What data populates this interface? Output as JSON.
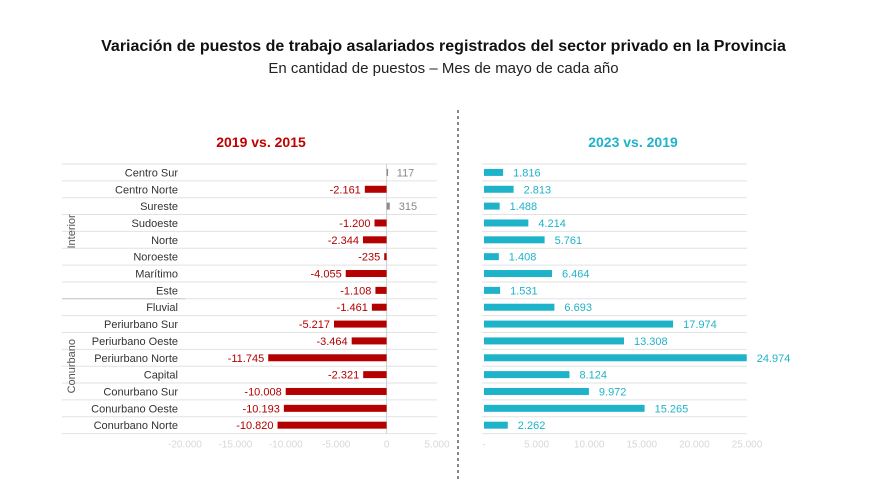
{
  "title": "Variación de puestos de trabajo asalariados registrados del sector privado en la Provincia",
  "subtitle": "En cantidad de puestos – Mes de mayo de cada año",
  "colors": {
    "negative": "#b30000",
    "positive_small": "#8c8c8c",
    "right": "#1fb3c9",
    "left_title": "#c00000",
    "right_title": "#1fb3c9"
  },
  "chart_data": [
    {
      "type": "bar",
      "orientation": "horizontal",
      "title": "2019 vs. 2015",
      "categories": [
        "Centro Sur",
        "Centro Norte",
        "Sureste",
        "Sudoeste",
        "Norte",
        "Noroeste",
        "Marítimo",
        "Este",
        "Fluvial",
        "Periurbano Sur",
        "Periurbano Oeste",
        "Periurbano Norte",
        "Capital",
        "Conurbano Sur",
        "Conurbano Oeste",
        "Conurbano Norte"
      ],
      "groups": [
        {
          "name": "Interior",
          "from": 0,
          "to": 7
        },
        {
          "name": "Conurbano",
          "from": 8,
          "to": 15
        }
      ],
      "values": [
        117,
        -2161,
        315,
        -1200,
        -2344,
        -235,
        -4055,
        -1108,
        -1461,
        -5217,
        -3464,
        -11745,
        -2321,
        -10008,
        -10193,
        -10820
      ],
      "labels": [
        "117",
        "-2.161",
        "315",
        "-1.200",
        "-2.344",
        "-235",
        "-4.055",
        "-1.108",
        "-1.461",
        "-5.217",
        "-3.464",
        "-11.745",
        "-2.321",
        "-10.008",
        "-10.193",
        "-10.820"
      ],
      "xlim": [
        -20000,
        5000
      ],
      "xticks": [
        -20000,
        -15000,
        -10000,
        -5000,
        0,
        5000
      ],
      "xtick_labels": [
        "-20.000",
        "-15.000",
        "-10.000",
        "-5.000",
        "0",
        "5.000"
      ],
      "grid": true
    },
    {
      "type": "bar",
      "orientation": "horizontal",
      "title": "2023 vs. 2019",
      "categories": [
        "Centro Sur",
        "Centro Norte",
        "Sureste",
        "Sudoeste",
        "Norte",
        "Noroeste",
        "Marítimo",
        "Este",
        "Fluvial",
        "Periurbano Sur",
        "Periurbano Oeste",
        "Periurbano Norte",
        "Capital",
        "Conurbano Sur",
        "Conurbano Oeste",
        "Conurbano Norte"
      ],
      "values": [
        1816,
        2813,
        1488,
        4214,
        5761,
        1408,
        6464,
        1531,
        6693,
        17974,
        13308,
        24974,
        8124,
        9972,
        15265,
        2262
      ],
      "labels": [
        "1.816",
        "2.813",
        "1.488",
        "4.214",
        "5.761",
        "1.408",
        "6.464",
        "1.531",
        "6.693",
        "17.974",
        "13.308",
        "24.974",
        "8.124",
        "9.972",
        "15.265",
        "2.262"
      ],
      "xlim": [
        0,
        25000
      ],
      "xticks": [
        0,
        5000,
        10000,
        15000,
        20000,
        25000
      ],
      "xtick_labels": [
        "-",
        "5.000",
        "10.000",
        "15.000",
        "20.000",
        "25.000"
      ],
      "grid": true
    }
  ]
}
